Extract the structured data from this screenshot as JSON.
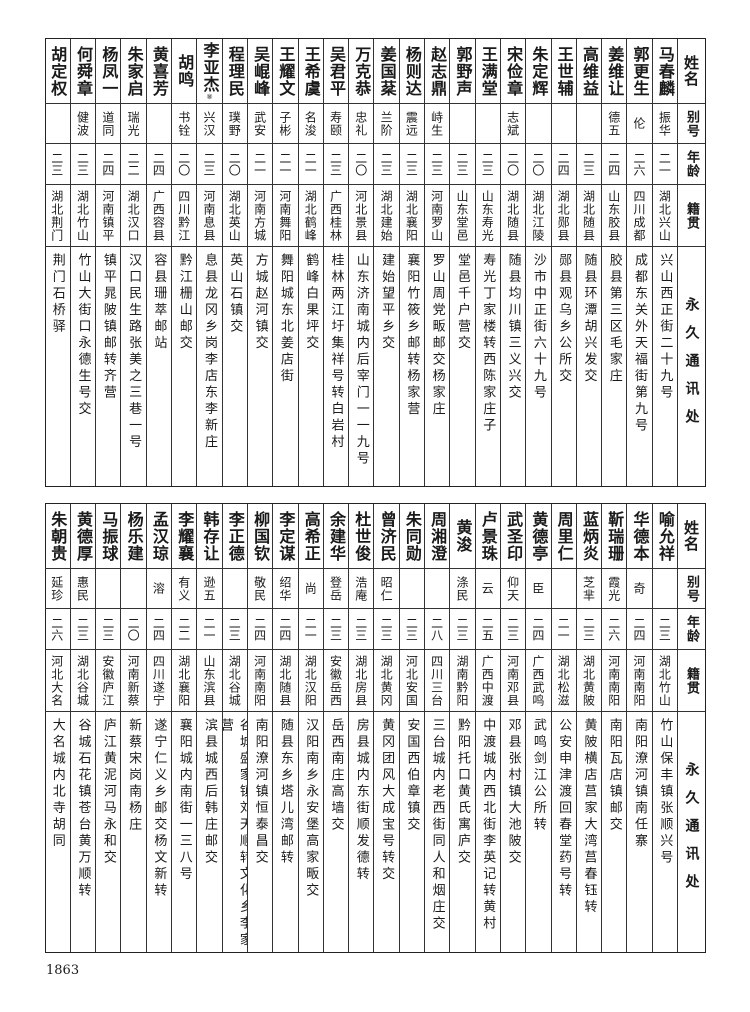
{
  "headers": {
    "name": "姓名",
    "alias": "别号",
    "age": "年龄",
    "native": "籍贯",
    "address": "永久通讯处"
  },
  "top_table": [
    {
      "name": "马春麟",
      "alias": "振华",
      "age": "二一",
      "native": "湖北兴山",
      "address": "兴山西正街二十九号"
    },
    {
      "name": "郭更生",
      "alias": "伦",
      "age": "二六",
      "native": "四川成都",
      "address": "成都东关外天福街第九号"
    },
    {
      "name": "姜维让",
      "alias": "德五",
      "age": "二四",
      "native": "山东胶县",
      "address": "胶县第三区毛家庄"
    },
    {
      "name": "高维益",
      "alias": "",
      "age": "二三",
      "native": "湖北随县",
      "address": "随县环潭胡兴发交"
    },
    {
      "name": "王世辅",
      "alias": "",
      "age": "二四",
      "native": "湖北郧县",
      "address": "郧县观乌乡公所交"
    },
    {
      "name": "朱定辉",
      "alias": "",
      "age": "二〇",
      "native": "湖北江陵",
      "address": "沙市中正街六十九号"
    },
    {
      "name": "宋俭章",
      "alias": "志斌",
      "age": "二〇",
      "native": "湖北随县",
      "address": "随县均川镇三义兴交"
    },
    {
      "name": "王满堂",
      "alias": "",
      "age": "二三",
      "native": "山东寿光",
      "address": "寿光丁家楼转西陈家庄子"
    },
    {
      "name": "郭野声",
      "alias": "",
      "age": "二三",
      "native": "山东堂邑",
      "address": "堂邑千户营交"
    },
    {
      "name": "赵志鼎",
      "alias": "峙生",
      "age": "二三",
      "native": "河南罗山",
      "address": "罗山周党畈邮交杨家庄"
    },
    {
      "name": "杨则达",
      "alias": "震远",
      "age": "二三",
      "native": "湖北襄阳",
      "address": "襄阳竹筱乡邮转杨家营"
    },
    {
      "name": "姜国棻",
      "alias": "兰阶",
      "age": "二三",
      "native": "湖北建始",
      "address": "建始望平乡交"
    },
    {
      "name": "万克恭",
      "alias": "忠礼",
      "age": "二〇",
      "native": "河北景县",
      "address": "山东济南城内后宰门一一九号"
    },
    {
      "name": "吴君平",
      "alias": "寿颐",
      "age": "二三",
      "native": "广西桂林",
      "address": "桂林两江圩集祥号转白岩村"
    },
    {
      "name": "王希虞",
      "alias": "名浚",
      "age": "二一",
      "native": "湖北鹤峰",
      "address": "鹤峰白果坪交"
    },
    {
      "name": "王耀文",
      "alias": "子彬",
      "age": "二一",
      "native": "河南舞阳",
      "address": "舞阳城东北姜店街"
    },
    {
      "name": "吴崐峰",
      "alias": "武安",
      "age": "二一",
      "native": "河南方城",
      "address": "方城赵河镇交"
    },
    {
      "name": "程理民",
      "alias": "璞野",
      "age": "二〇",
      "native": "湖北英山",
      "address": "英山石镇交"
    },
    {
      "name": "李亚杰",
      "note": "⑧",
      "alias": "兴汉",
      "age": "二三",
      "native": "河南息县",
      "address": "息县龙冈乡岗李店东李新庄"
    },
    {
      "name": "胡鸣",
      "alias": "书铨",
      "age": "二〇",
      "native": "四川黔江",
      "address": "黔江栅山邮交"
    },
    {
      "name": "黄喜芳",
      "alias": "",
      "age": "二四",
      "native": "广西容县",
      "address": "容县珊萃邮站"
    },
    {
      "name": "朱家启",
      "alias": "瑞光",
      "age": "二二",
      "native": "湖北汉口",
      "address": "汉口民生路张美之三巷一号"
    },
    {
      "name": "杨凤一",
      "alias": "道同",
      "age": "二四",
      "native": "河南镇平",
      "address": "镇平晁陂镇邮转齐营"
    },
    {
      "name": "何舜章",
      "alias": "健波",
      "age": "二三",
      "native": "湖北竹山",
      "address": "竹山大街口永德生号交"
    },
    {
      "name": "胡定权",
      "alias": "",
      "age": "二三",
      "native": "湖北荆门",
      "address": "荆门石桥驿"
    }
  ],
  "bottom_table": [
    {
      "name": "喻允祥",
      "alias": "",
      "age": "二三",
      "native": "湖北竹山",
      "address": "竹山保丰镇张顺兴号"
    },
    {
      "name": "华德本",
      "alias": "奇",
      "age": "二四",
      "native": "河南南阳",
      "address": "南阳潦河镇南任寨"
    },
    {
      "name": "靳瑞珊",
      "alias": "霞光",
      "age": "二六",
      "native": "河南南阳",
      "address": "南阳瓦店镇邮交"
    },
    {
      "name": "蓝炳炎",
      "alias": "芝芈",
      "age": "二三",
      "native": "湖北黄陂",
      "address": "黄陂横店莒家大湾莒春钰转"
    },
    {
      "name": "周里仁",
      "alias": "",
      "age": "二一",
      "native": "湖北松滋",
      "address": "公安申津渡回春堂药号转"
    },
    {
      "name": "黄德亭",
      "alias": "臣",
      "age": "二四",
      "native": "广西武鸣",
      "address": "武鸣剑江公所转"
    },
    {
      "name": "武圣印",
      "alias": "仰天",
      "age": "二三",
      "native": "河南邓县",
      "address": "邓县张村镇大池陂交"
    },
    {
      "name": "卢景珠",
      "alias": "云",
      "age": "二五",
      "native": "广西中渡",
      "address": "中渡城内西北街李英记转黄村"
    },
    {
      "name": "黄浚",
      "alias": "涤民",
      "age": "二三",
      "native": "湖南黔阳",
      "address": "黔阳托口黄氏寓庐交"
    },
    {
      "name": "周湘澄",
      "alias": "",
      "age": "二八",
      "native": "四川三台",
      "address": "三台城内老西街同人和烟庄交"
    },
    {
      "name": "朱同勋",
      "alias": "",
      "age": "二三",
      "native": "河北安国",
      "address": "安国西伯章镇交"
    },
    {
      "name": "曾济民",
      "alias": "昭仁",
      "age": "二三",
      "native": "湖北黄冈",
      "address": "黄冈团风大成宝号转交"
    },
    {
      "name": "杜世俊",
      "alias": "浩庵",
      "age": "二三",
      "native": "湖北房县",
      "address": "房县城内东街顺发德转"
    },
    {
      "name": "余建华",
      "alias": "登岳",
      "age": "二三",
      "native": "安徽岳西",
      "address": "岳西南庄高墙交"
    },
    {
      "name": "高希正",
      "alias": "尚",
      "age": "二一",
      "native": "湖北汉阳",
      "address": "汉阳南乡永安堡高家畈交"
    },
    {
      "name": "李定谋",
      "alias": "绍华",
      "age": "二四",
      "native": "湖北随县",
      "address": "随县东乡塔儿湾邮转"
    },
    {
      "name": "柳国钦",
      "alias": "敬民",
      "age": "二四",
      "native": "河南南阳",
      "address": "南阳潦河镇恒泰昌交"
    },
    {
      "name": "李正德",
      "alias": "",
      "age": "二三",
      "native": "湖北谷城",
      "address": "谷城盛家镇刘天顺转文化乡李家营"
    },
    {
      "name": "韩存让",
      "alias": "逊五",
      "age": "二一",
      "native": "山东滨县",
      "address": "滨县城西后韩庄邮交"
    },
    {
      "name": "李耀襄",
      "alias": "有义",
      "age": "二二",
      "native": "湖北襄阳",
      "address": "襄阳城内南街一三八号"
    },
    {
      "name": "孟汉琼",
      "alias": "溶",
      "age": "二四",
      "native": "四川遂宁",
      "address": "遂宁仁义乡邮交杨文新转"
    },
    {
      "name": "杨乐建",
      "alias": "",
      "age": "二〇",
      "native": "河南新蔡",
      "address": "新蔡宋岗南杨庄"
    },
    {
      "name": "马振球",
      "alias": "",
      "age": "二三",
      "native": "安徽庐江",
      "address": "庐江黄泥河马永和交"
    },
    {
      "name": "黄德厚",
      "alias": "惠民",
      "age": "二三",
      "native": "湖北谷城",
      "address": "谷城石花镇苍台黄万顺转"
    },
    {
      "name": "朱朝贵",
      "alias": "延珍",
      "age": "二六",
      "native": "河北大名",
      "address": "大名城内北寺胡同"
    }
  ],
  "page_number": "1863"
}
